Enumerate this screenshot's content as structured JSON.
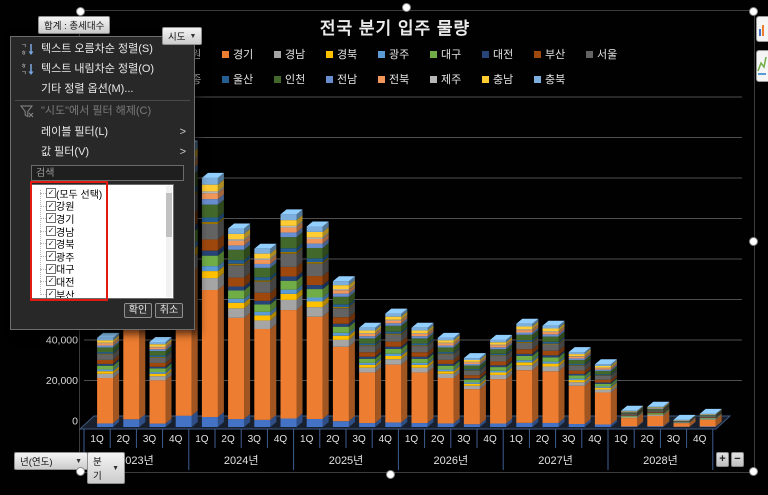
{
  "pivot_buttons": {
    "value_field": "합계 : 총세대수",
    "axis_field_filter": "시도",
    "axis_field_year": "년(연도)",
    "axis_field_quarter": "분기",
    "expand_label": "+",
    "collapse_label": "−"
  },
  "context_menu": {
    "sort_asc": "텍스트 오름차순 정렬(S)",
    "sort_desc": "텍스트 내림차순 정렬(O)",
    "more_sort_options": "기타 정렬 옵션(M)...",
    "clear_filter": "\"시도\"에서 필터 해제(C)",
    "label_filter": "레이블 필터(L)",
    "value_filter": "값 필터(V)",
    "search_placeholder": "검색",
    "checkbox_items": [
      "(모두 선택)",
      "강원",
      "경기",
      "경남",
      "경북",
      "광주",
      "대구",
      "대전",
      "부산"
    ],
    "all_checked": true,
    "check_glyph": "✓",
    "ok_label": "확인",
    "cancel_label": "취소",
    "highlight_color": "#e11b12"
  },
  "chart_data": {
    "type": "bar",
    "stacked": true,
    "projection": "3d",
    "title": "전국 분기 입주 물량",
    "legend_position": "top",
    "grid": true,
    "years": [
      "2023년",
      "2024년",
      "2025년",
      "2026년",
      "2027년",
      "2028년"
    ],
    "quarters": [
      "1Q",
      "2Q",
      "3Q",
      "4Q"
    ],
    "y_axis": {
      "min": 0,
      "max": 160000,
      "step": 20000,
      "visible_tick_labels": [
        "0",
        "20,000",
        "40,000"
      ]
    },
    "regions": [
      {
        "name": "강원",
        "color": "#4472C4"
      },
      {
        "name": "경기",
        "color": "#ED7D31"
      },
      {
        "name": "경남",
        "color": "#A5A5A5"
      },
      {
        "name": "경북",
        "color": "#FFC000"
      },
      {
        "name": "광주",
        "color": "#5B9BD5"
      },
      {
        "name": "대구",
        "color": "#70AD47"
      },
      {
        "name": "대전",
        "color": "#264478"
      },
      {
        "name": "부산",
        "color": "#9E480E"
      },
      {
        "name": "서울",
        "color": "#636363"
      },
      {
        "name": "세종",
        "color": "#997300"
      },
      {
        "name": "울산",
        "color": "#255E91"
      },
      {
        "name": "인천",
        "color": "#43682B"
      },
      {
        "name": "전남",
        "color": "#698ED0"
      },
      {
        "name": "전북",
        "color": "#F1975A"
      },
      {
        "name": "제주",
        "color": "#B7B7B7"
      },
      {
        "name": "충남",
        "color": "#FFCD33"
      },
      {
        "name": "충북",
        "color": "#7CAFDD"
      }
    ],
    "estimated_quarter_totals": [
      [
        44000,
        95000,
        42000,
        139000
      ],
      [
        123000,
        98000,
        88000,
        105000
      ],
      [
        99000,
        72000,
        49000,
        56000
      ],
      [
        49000,
        44000,
        34000,
        43000
      ],
      [
        51000,
        50000,
        37000,
        31000
      ],
      [
        8000,
        10000,
        3500,
        6500
      ]
    ],
    "estimated_region_share_pct": [
      4.0,
      51.0,
      4.8,
      2.8,
      2.0,
      4.2,
      2.0,
      4.5,
      6.2,
      0.8,
      1.8,
      5.2,
      2.2,
      2.3,
      0.8,
      2.7,
      2.7
    ]
  }
}
